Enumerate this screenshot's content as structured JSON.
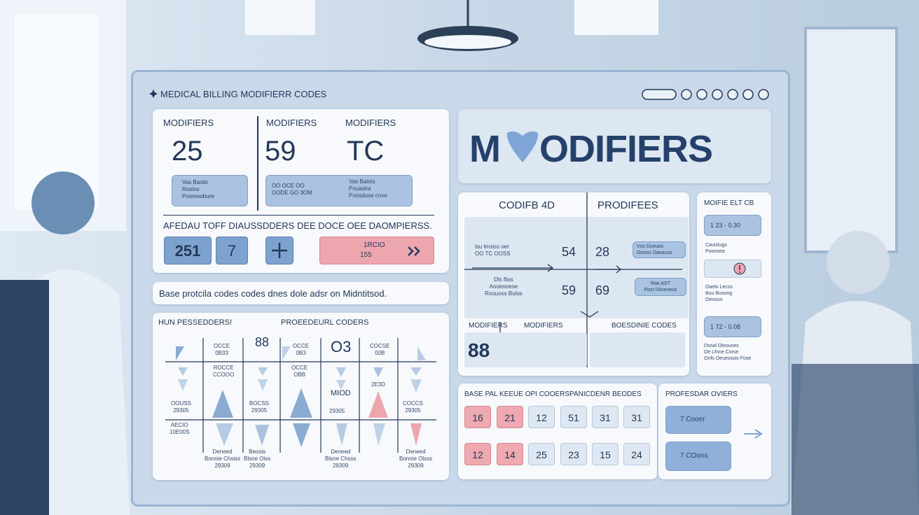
{
  "header": {
    "title": "MEDICAL BILLING MODIFIERR CODES"
  },
  "modifiers_panel": {
    "labels": [
      "MODIFIERS",
      "MODIFIERS",
      "MODIFIERS"
    ],
    "values": [
      "25",
      "59",
      "TC"
    ],
    "chips": [
      "Vas Bastic\nRosins\nPooresobure",
      "OO OCE OO\nOODE GO 3OM",
      "Vas Balsto\nPouaslra\nPoosduse cove"
    ],
    "note": "AFEDAU TOFF DIAUSSDDERS DEE DOCE OEE DAOMPIERSS.",
    "buttons": [
      "251",
      "7"
    ],
    "action": {
      "text": "1RCIO",
      "sub": "155"
    }
  },
  "banner": {
    "text": "Base protcila codes codes dnes dole adsr on Midntitsod."
  },
  "procedure_panel": {
    "headers": [
      "HUN PESSEDDERS!",
      "PROEEDEURL CODERS"
    ],
    "numbers": [
      "88",
      "O3",
      "MIOD"
    ],
    "labels": [
      "OCCE\n0B33",
      "OCCE\n0B3",
      "COCSE\n00B",
      "ROCCE\nCCOOO",
      "OCCE\nOBB",
      "2E3D",
      "OOUSS\n29305",
      "BOCSS\n29305",
      "29305",
      "COCCS\n29305",
      "AECIO\n10E00S",
      "Deneed\nBonnie Chsiss\n29309",
      "Beosis\nBlsne Oiss\n29309",
      "Deneed\nBlsne Chsss\n29309",
      "Deneed\nBonnie Olsss\n29309"
    ]
  },
  "title_panel": {
    "first": "M",
    "rest": "ODIFIERS"
  },
  "quad_panel": {
    "headers": [
      "CODIFB 4D",
      "PRODIFEES"
    ],
    "values": [
      "54",
      "28",
      "59",
      "69"
    ],
    "notes": [
      "lsu tmsiss oer\nOO TC OOSS",
      "Dls fliss\nAooeooese\nRoouoss Bulos"
    ],
    "chips": [
      "Vso Dueuos\nOooso Oaeauss",
      "Rae AST\nPosr Diineoess"
    ],
    "footer_labels": [
      "MODIFIERS",
      "MODIFIERS",
      "BOESDINIE CODES"
    ],
    "footer_value": "88"
  },
  "side_panel": {
    "title": "MOIFIE ELT CB",
    "chips": [
      "1  23 - 0.30",
      "1  72 - 0.08"
    ],
    "notes": [
      "Cauislugs\nPoonsea",
      "Oaelo Lecss\nBuu Busong\nOeoous",
      "Dsnal Oleounes\nOe Lfnne Corse\nOnfs Oeuessois Fose"
    ]
  },
  "grid_panel": {
    "title": "BASE PAL KEEUE OPI COOERSPANICDENR BEODES",
    "cells": [
      [
        "16",
        "21",
        "12",
        "51",
        "31",
        "31"
      ],
      [
        "12",
        "14",
        "25",
        "23",
        "15",
        "24"
      ]
    ]
  },
  "professional_panel": {
    "title": "PROFESDAR OVIERS",
    "chips": [
      "7  Cooer",
      "7  COons"
    ]
  }
}
